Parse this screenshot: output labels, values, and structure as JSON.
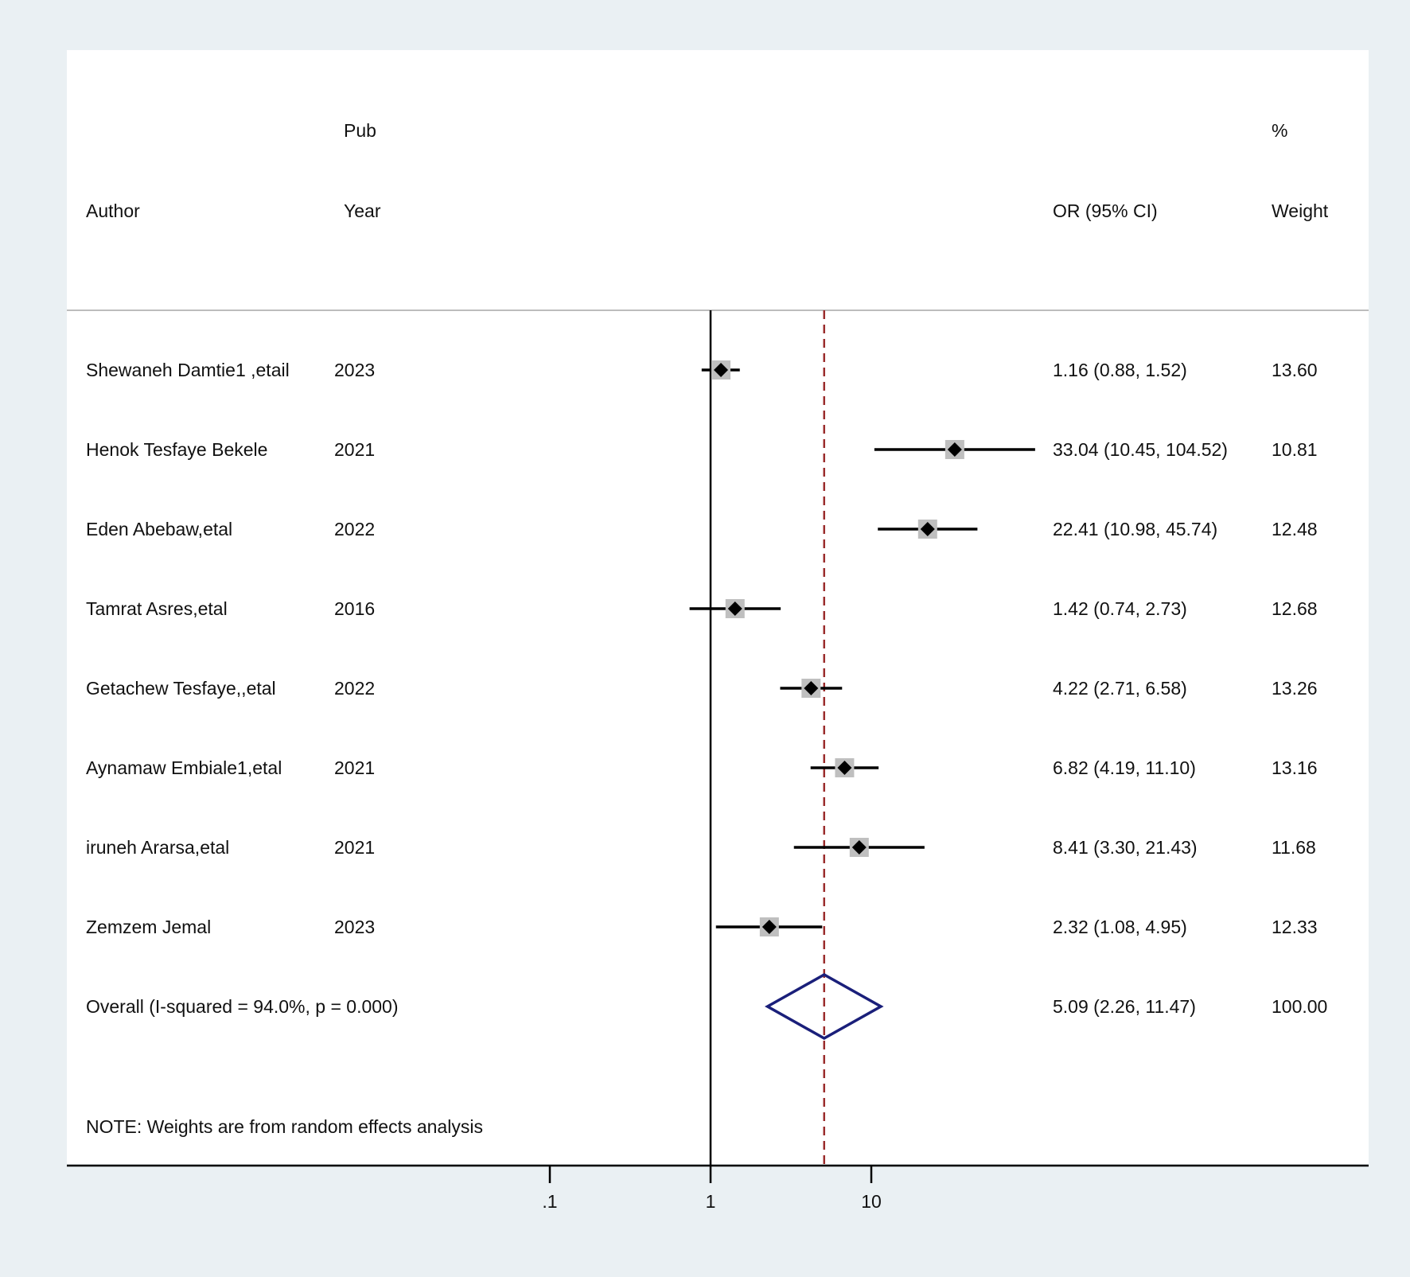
{
  "chart_data": {
    "type": "forest",
    "headers": {
      "author": "Author",
      "pub_line1": "Pub",
      "pub_line2": "Year",
      "or": "OR (95% CI)",
      "weight_line1": "%",
      "weight_line2": "Weight"
    },
    "x_scale": "log",
    "x_ticks": [
      {
        "value": 0.1,
        "label": ".1"
      },
      {
        "value": 1,
        "label": "1"
      },
      {
        "value": 10,
        "label": "10"
      }
    ],
    "null_line": 1,
    "studies": [
      {
        "author": "Shewaneh Damtie1 ,etail",
        "year": "2023",
        "or": 1.16,
        "lower": 0.88,
        "upper": 1.52,
        "or_text": "1.16 (0.88, 1.52)",
        "weight": "13.60"
      },
      {
        "author": "Henok Tesfaye Bekele",
        "year": "2021",
        "or": 33.04,
        "lower": 10.45,
        "upper": 104.52,
        "or_text": "33.04 (10.45, 104.52)",
        "weight": "10.81"
      },
      {
        "author": "Eden Abebaw,etal",
        "year": "2022",
        "or": 22.41,
        "lower": 10.98,
        "upper": 45.74,
        "or_text": "22.41 (10.98, 45.74)",
        "weight": "12.48"
      },
      {
        "author": "Tamrat  Asres,etal",
        "year": "2016",
        "or": 1.42,
        "lower": 0.74,
        "upper": 2.73,
        "or_text": "1.42 (0.74, 2.73)",
        "weight": "12.68"
      },
      {
        "author": "Getachew Tesfaye,,etal",
        "year": "2022",
        "or": 4.22,
        "lower": 2.71,
        "upper": 6.58,
        "or_text": "4.22 (2.71, 6.58)",
        "weight": "13.26"
      },
      {
        "author": "Aynamaw Embiale1,etal",
        "year": "2021",
        "or": 6.82,
        "lower": 4.19,
        "upper": 11.1,
        "or_text": "6.82 (4.19, 11.10)",
        "weight": "13.16"
      },
      {
        "author": "iruneh Ararsa,etal",
        "year": "2021",
        "or": 8.41,
        "lower": 3.3,
        "upper": 21.43,
        "or_text": "8.41 (3.30, 21.43)",
        "weight": "11.68"
      },
      {
        "author": "Zemzem Jemal",
        "year": "2023",
        "or": 2.32,
        "lower": 1.08,
        "upper": 4.95,
        "or_text": "2.32 (1.08, 4.95)",
        "weight": "12.33"
      }
    ],
    "overall": {
      "label": "Overall  (I-squared = 94.0%, p = 0.000)",
      "or": 5.09,
      "lower": 2.26,
      "upper": 11.47,
      "or_text": "5.09 (2.26, 11.47)",
      "weight": "100.00"
    },
    "note": "NOTE: Weights are from random effects analysis",
    "colors": {
      "outer_background": "#eaf0f3",
      "plot_background": "#ffffff",
      "overall_line": "#9b2d2d",
      "diamond": "#1a1f7a",
      "weight_box": "#bfbfbf",
      "header_rule": "#bdbdbd"
    }
  }
}
